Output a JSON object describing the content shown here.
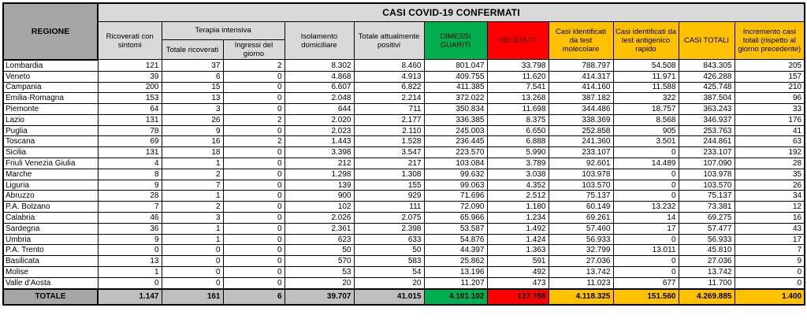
{
  "title": "CASI COVID-19 CONFERMATI",
  "colors": {
    "header_dark_gray": "#a6a6a6",
    "header_light_gray": "#d9d9d9",
    "totale_gray": "#bfbfbf",
    "green": "#00b050",
    "red": "#ff0000",
    "yellow": "#ffc000"
  },
  "header": {
    "regione": "REGIONE",
    "ricoverati": "Ricoverati con sintomi",
    "terapia_group": "Terapia intensiva",
    "totale_ricoverati": "Totale ricoverati",
    "ingressi": "Ingressi del giorno",
    "isolamento": "Isolamento domiciliare",
    "positivi": "Totale attualmente positivi",
    "dimessi": "DIMESSI GUARITI",
    "deceduti": "DECEDUTI",
    "molecolare": "Casi identificati da test molecolare",
    "antigenico": "Casi identificati da test antigenico rapido",
    "casi_totali": "CASI TOTALI",
    "incremento": "Incremento casi totali (rispetto al giorno precedente)"
  },
  "rows": [
    {
      "regione": "Lombardia",
      "values": [
        "121",
        "37",
        "2",
        "8.302",
        "8.460",
        "801.047",
        "33.798",
        "788.797",
        "54.508",
        "843.305",
        "205"
      ]
    },
    {
      "regione": "Veneto",
      "values": [
        "39",
        "6",
        "0",
        "4.868",
        "4.913",
        "409.755",
        "11.620",
        "414.317",
        "11.971",
        "426.288",
        "157"
      ]
    },
    {
      "regione": "Campania",
      "values": [
        "200",
        "15",
        "0",
        "6.607",
        "6.822",
        "411.385",
        "7.541",
        "414.160",
        "11.588",
        "425.748",
        "210"
      ]
    },
    {
      "regione": "Emilia-Romagna",
      "values": [
        "153",
        "13",
        "0",
        "2.048",
        "2.214",
        "372.022",
        "13.268",
        "387.182",
        "322",
        "387.504",
        "96"
      ]
    },
    {
      "regione": "Piemonte",
      "values": [
        "64",
        "3",
        "0",
        "644",
        "711",
        "350.834",
        "11.698",
        "344.486",
        "18.757",
        "363.243",
        "33"
      ]
    },
    {
      "regione": "Lazio",
      "values": [
        "131",
        "26",
        "2",
        "2.020",
        "2.177",
        "336.385",
        "8.375",
        "338.369",
        "8.568",
        "346.937",
        "176"
      ]
    },
    {
      "regione": "Puglia",
      "values": [
        "78",
        "9",
        "0",
        "2.023",
        "2.110",
        "245.003",
        "6.650",
        "252.858",
        "905",
        "253.763",
        "41"
      ]
    },
    {
      "regione": "Toscana",
      "values": [
        "69",
        "16",
        "2",
        "1.443",
        "1.528",
        "236.445",
        "6.888",
        "241.360",
        "3.501",
        "244.861",
        "63"
      ]
    },
    {
      "regione": "Sicilia",
      "values": [
        "131",
        "18",
        "0",
        "3.398",
        "3.547",
        "223.570",
        "5.990",
        "233.107",
        "0",
        "233.107",
        "192"
      ]
    },
    {
      "regione": "Friuli Venezia Giulia",
      "values": [
        "4",
        "1",
        "0",
        "212",
        "217",
        "103.084",
        "3.789",
        "92.601",
        "14.489",
        "107.090",
        "28"
      ]
    },
    {
      "regione": "Marche",
      "values": [
        "8",
        "2",
        "0",
        "1.298",
        "1.308",
        "99.632",
        "3.038",
        "103.978",
        "0",
        "103.978",
        "35"
      ]
    },
    {
      "regione": "Liguria",
      "values": [
        "9",
        "7",
        "0",
        "139",
        "155",
        "99.063",
        "4.352",
        "103.570",
        "0",
        "103.570",
        "26"
      ]
    },
    {
      "regione": "Abruzzo",
      "values": [
        "28",
        "1",
        "0",
        "900",
        "929",
        "71.696",
        "2.512",
        "75.137",
        "0",
        "75.137",
        "34"
      ]
    },
    {
      "regione": "P.A. Bolzano",
      "values": [
        "7",
        "2",
        "0",
        "102",
        "111",
        "72.090",
        "1.180",
        "60.149",
        "13.232",
        "73.381",
        "12"
      ]
    },
    {
      "regione": "Calabria",
      "values": [
        "46",
        "3",
        "0",
        "2.026",
        "2.075",
        "65.966",
        "1.234",
        "69.261",
        "14",
        "69.275",
        "16"
      ]
    },
    {
      "regione": "Sardegna",
      "values": [
        "36",
        "1",
        "0",
        "2.361",
        "2.398",
        "53.587",
        "1.492",
        "57.460",
        "17",
        "57.477",
        "43"
      ]
    },
    {
      "regione": "Umbria",
      "values": [
        "9",
        "1",
        "0",
        "623",
        "633",
        "54.876",
        "1.424",
        "56.933",
        "0",
        "56.933",
        "17"
      ]
    },
    {
      "regione": "P.A. Trento",
      "values": [
        "0",
        "0",
        "0",
        "50",
        "50",
        "44.397",
        "1.363",
        "32.799",
        "13.011",
        "45.810",
        "7"
      ]
    },
    {
      "regione": "Basilicata",
      "values": [
        "13",
        "0",
        "0",
        "570",
        "583",
        "25.862",
        "591",
        "27.036",
        "0",
        "27.036",
        "9"
      ]
    },
    {
      "regione": "Molise",
      "values": [
        "1",
        "0",
        "0",
        "53",
        "54",
        "13.196",
        "492",
        "13.742",
        "0",
        "13.742",
        "0"
      ]
    },
    {
      "regione": "Valle d'Aosta",
      "values": [
        "0",
        "0",
        "0",
        "20",
        "20",
        "11.207",
        "473",
        "11.023",
        "677",
        "11.700",
        "0"
      ]
    }
  ],
  "totale": {
    "label": "TOTALE",
    "values": [
      "1.147",
      "161",
      "6",
      "39.707",
      "41.015",
      "4.101.102",
      "127.768",
      "4.118.325",
      "151.560",
      "4.269.885",
      "1.400"
    ]
  }
}
